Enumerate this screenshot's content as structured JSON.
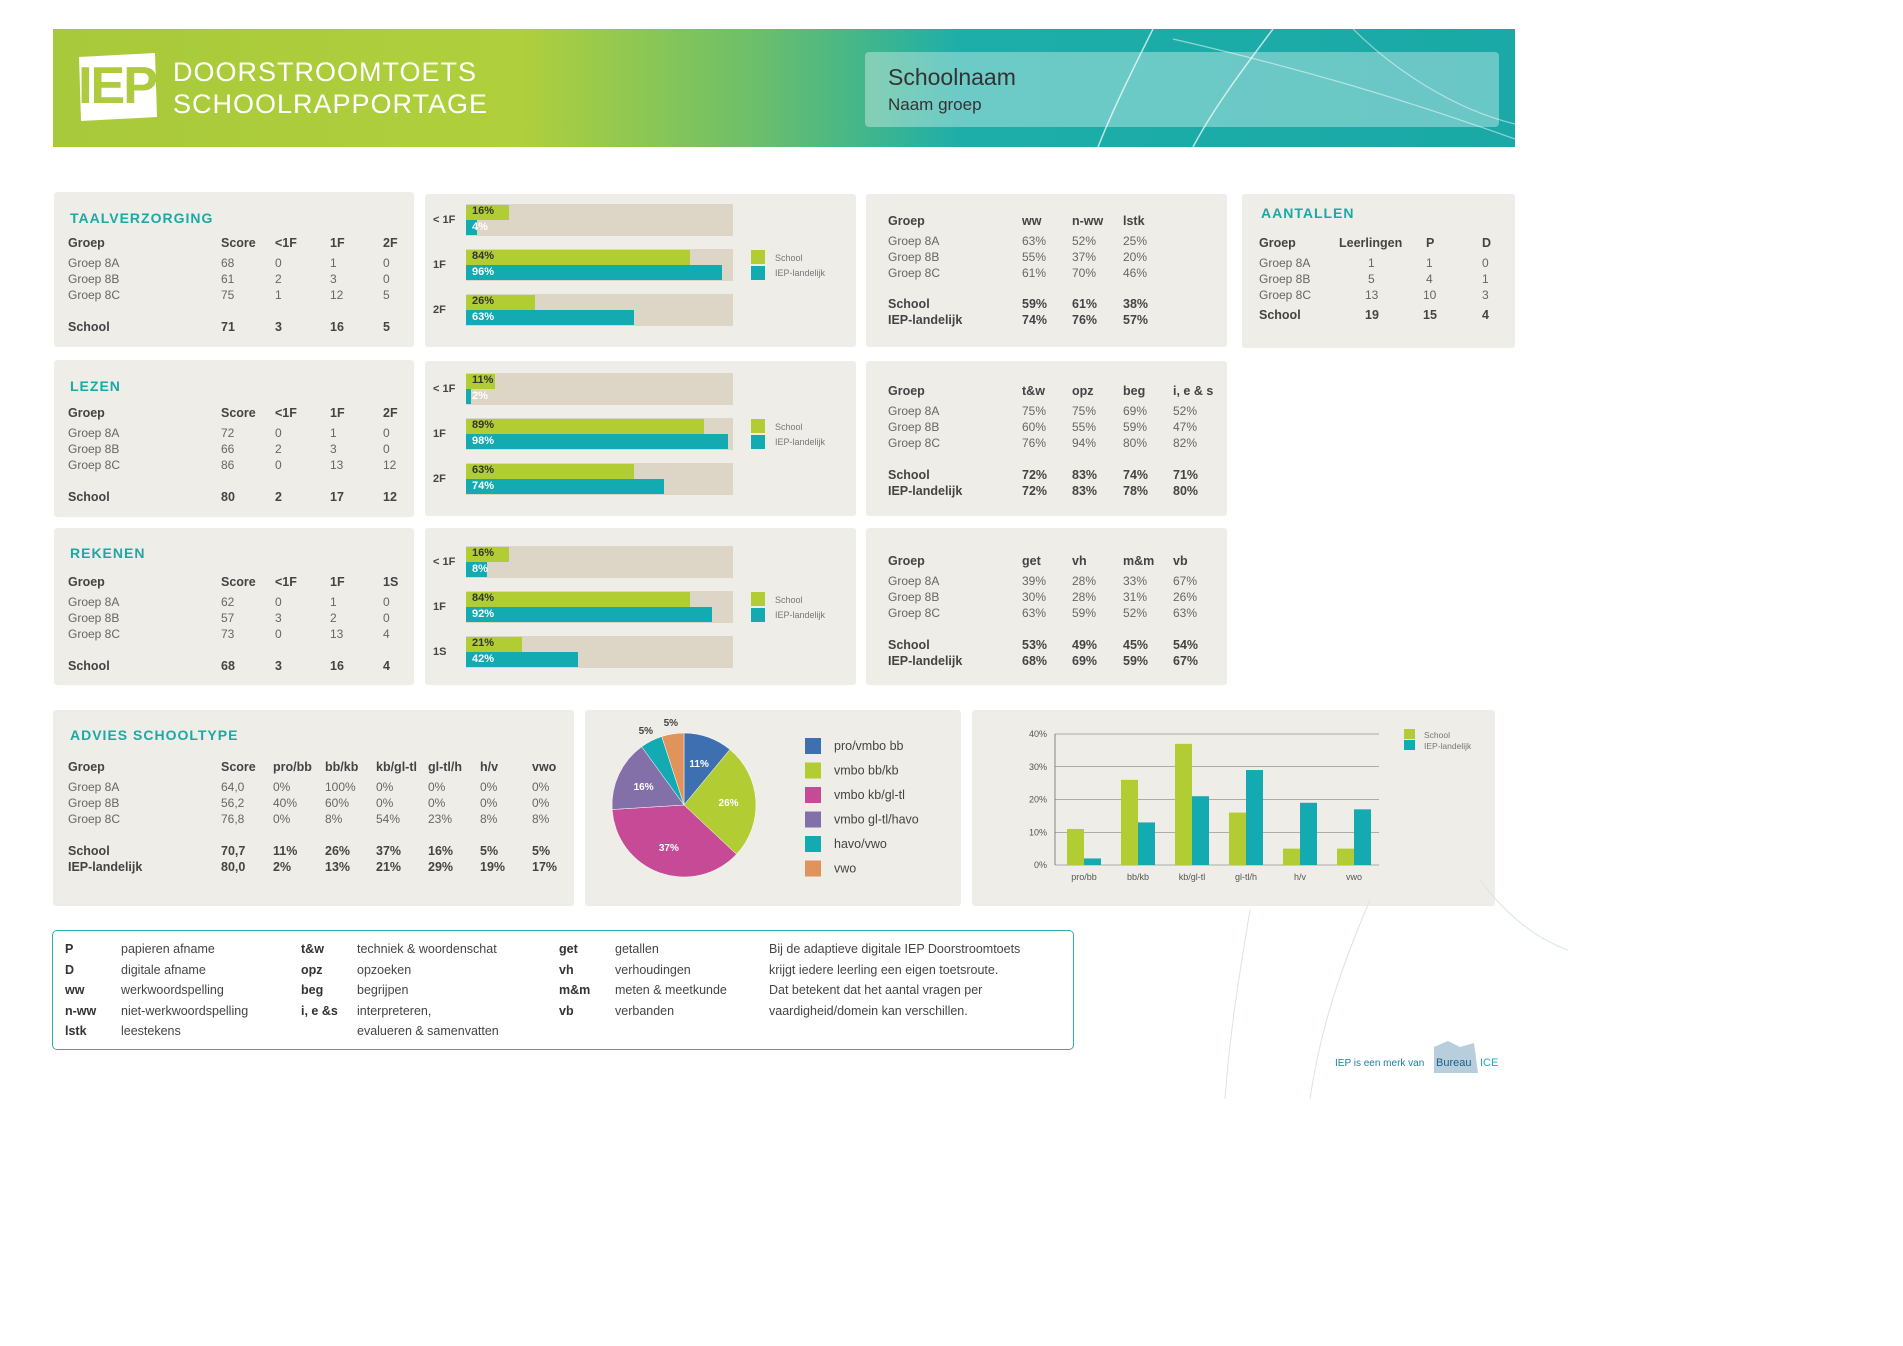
{
  "header": {
    "logo": "IEP",
    "title_line1": "DOORSTROOMTOETS",
    "title_line2": "SCHOOLRAPPORTAGE",
    "school_name": "Schoolnaam",
    "group_name": "Naam groep"
  },
  "taalverzorging": {
    "title": "TAALVERZORGING",
    "headers": [
      "Groep",
      "Score",
      "<1F",
      "1F",
      "2F"
    ],
    "rows": [
      [
        "Groep 8A",
        "68",
        "0",
        "1",
        "0"
      ],
      [
        "Groep 8B",
        "61",
        "2",
        "3",
        "0"
      ],
      [
        "Groep 8C",
        "75",
        "1",
        "12",
        "5"
      ]
    ],
    "school": [
      "School",
      "71",
      "3",
      "16",
      "5"
    ],
    "bars": {
      "levels": [
        "< 1F",
        "1F",
        "2F"
      ],
      "school": [
        16,
        84,
        26
      ],
      "national": [
        4,
        96,
        63
      ],
      "school_labels": [
        "16%",
        "84%",
        "26%"
      ],
      "national_labels": [
        "4%",
        "96%",
        "63%"
      ]
    },
    "domain_headers": [
      "Groep",
      "ww",
      "n-ww",
      "lstk"
    ],
    "domain_rows": [
      [
        "Groep 8A",
        "63%",
        "52%",
        "25%"
      ],
      [
        "Groep 8B",
        "55%",
        "37%",
        "20%"
      ],
      [
        "Groep 8C",
        "61%",
        "70%",
        "46%"
      ]
    ],
    "domain_school": [
      "School",
      "59%",
      "61%",
      "38%"
    ],
    "domain_national": [
      "IEP-landelijk",
      "74%",
      "76%",
      "57%"
    ]
  },
  "lezen": {
    "title": "LEZEN",
    "headers": [
      "Groep",
      "Score",
      "<1F",
      "1F",
      "2F"
    ],
    "rows": [
      [
        "Groep 8A",
        "72",
        "0",
        "1",
        "0"
      ],
      [
        "Groep 8B",
        "66",
        "2",
        "3",
        "0"
      ],
      [
        "Groep 8C",
        "86",
        "0",
        "13",
        "12"
      ]
    ],
    "school": [
      "School",
      "80",
      "2",
      "17",
      "12"
    ],
    "bars": {
      "levels": [
        "< 1F",
        "1F",
        "2F"
      ],
      "school": [
        11,
        89,
        63
      ],
      "national": [
        2,
        98,
        74
      ],
      "school_labels": [
        "11%",
        "89%",
        "63%"
      ],
      "national_labels": [
        "2%",
        "98%",
        "74%"
      ]
    },
    "domain_headers": [
      "Groep",
      "t&w",
      "opz",
      "beg",
      "i, e & s"
    ],
    "domain_rows": [
      [
        "Groep 8A",
        "75%",
        "75%",
        "69%",
        "52%"
      ],
      [
        "Groep 8B",
        "60%",
        "55%",
        "59%",
        "47%"
      ],
      [
        "Groep 8C",
        "76%",
        "94%",
        "80%",
        "82%"
      ]
    ],
    "domain_school": [
      "School",
      "72%",
      "83%",
      "74%",
      "71%"
    ],
    "domain_national": [
      "IEP-landelijk",
      "72%",
      "83%",
      "78%",
      "80%"
    ]
  },
  "rekenen": {
    "title": "REKENEN",
    "headers": [
      "Groep",
      "Score",
      "<1F",
      "1F",
      "1S"
    ],
    "rows": [
      [
        "Groep 8A",
        "62",
        "0",
        "1",
        "0"
      ],
      [
        "Groep 8B",
        "57",
        "3",
        "2",
        "0"
      ],
      [
        "Groep 8C",
        "73",
        "0",
        "13",
        "4"
      ]
    ],
    "school": [
      "School",
      "68",
      "3",
      "16",
      "4"
    ],
    "bars": {
      "levels": [
        "< 1F",
        "1F",
        "1S"
      ],
      "school": [
        16,
        84,
        21
      ],
      "national": [
        8,
        92,
        42
      ],
      "school_labels": [
        "16%",
        "84%",
        "21%"
      ],
      "national_labels": [
        "8%",
        "92%",
        "42%"
      ]
    },
    "domain_headers": [
      "Groep",
      "get",
      "vh",
      "m&m",
      "vb"
    ],
    "domain_rows": [
      [
        "Groep 8A",
        "39%",
        "28%",
        "33%",
        "67%"
      ],
      [
        "Groep 8B",
        "30%",
        "28%",
        "31%",
        "26%"
      ],
      [
        "Groep 8C",
        "63%",
        "59%",
        "52%",
        "63%"
      ]
    ],
    "domain_school": [
      "School",
      "53%",
      "49%",
      "45%",
      "54%"
    ],
    "domain_national": [
      "IEP-landelijk",
      "68%",
      "69%",
      "59%",
      "67%"
    ]
  },
  "bar_legend": {
    "school": "School",
    "national": "IEP-landelijk"
  },
  "aantallen": {
    "title": "AANTALLEN",
    "headers": [
      "Groep",
      "Leerlingen",
      "P",
      "D"
    ],
    "rows": [
      [
        "Groep 8A",
        "1",
        "1",
        "0"
      ],
      [
        "Groep 8B",
        "5",
        "4",
        "1"
      ],
      [
        "Groep 8C",
        "13",
        "10",
        "3"
      ]
    ],
    "school": [
      "School",
      "19",
      "15",
      "4"
    ]
  },
  "advies": {
    "title": "ADVIES SCHOOLTYPE",
    "headers": [
      "Groep",
      "Score",
      "pro/bb",
      "bb/kb",
      "kb/gl-tl",
      "gl-tl/h",
      "h/v",
      "vwo"
    ],
    "rows": [
      [
        "Groep 8A",
        "64,0",
        "0%",
        "100%",
        "0%",
        "0%",
        "0%",
        "0%"
      ],
      [
        "Groep 8B",
        "56,2",
        "40%",
        "60%",
        "0%",
        "0%",
        "0%",
        "0%"
      ],
      [
        "Groep 8C",
        "76,8",
        "0%",
        "8%",
        "54%",
        "23%",
        "8%",
        "8%"
      ]
    ],
    "school": [
      "School",
      "70,7",
      "11%",
      "26%",
      "37%",
      "16%",
      "5%",
      "5%"
    ],
    "national": [
      "IEP-landelijk",
      "80,0",
      "2%",
      "13%",
      "21%",
      "29%",
      "19%",
      "17%"
    ]
  },
  "colors": {
    "school": "#b2cd33",
    "national": "#13aab2",
    "accent": "#1aa9a6",
    "panel": "#efede8",
    "bar_bg": "#ddd6c6"
  },
  "chart_data": [
    {
      "type": "pie",
      "labels": [
        "pro/vmbo bb",
        "vmbo bb/kb",
        "vmbo kb/gl-tl",
        "vmbo gl-tl/havo",
        "havo/vwo",
        "vwo"
      ],
      "values": [
        11,
        26,
        37,
        16,
        5,
        5
      ],
      "value_labels": [
        "11%",
        "26%",
        "37%",
        "16%",
        "5%",
        "5%"
      ],
      "colors": [
        "#3e6fb0",
        "#b2cd33",
        "#c64a96",
        "#8470a8",
        "#13aab2",
        "#e0935a"
      ]
    },
    {
      "type": "bar",
      "categories": [
        "pro/bb",
        "bb/kb",
        "kb/gl-tl",
        "gl-tl/h",
        "h/v",
        "vwo"
      ],
      "series": [
        {
          "name": "School",
          "values": [
            11,
            26,
            37,
            16,
            5,
            5
          ]
        },
        {
          "name": "IEP-landelijk",
          "values": [
            2,
            13,
            21,
            29,
            19,
            17
          ]
        }
      ],
      "ylim": [
        0,
        40
      ],
      "yticks": [
        "0%",
        "10%",
        "20%",
        "30%",
        "40%"
      ],
      "legend": "top-right"
    }
  ],
  "glossary": {
    "col1": [
      [
        "P",
        "papieren afname"
      ],
      [
        "D",
        "digitale afname"
      ],
      [
        "ww",
        "werkwoordspelling"
      ],
      [
        "n-ww",
        "niet-werkwoordspelling"
      ],
      [
        "lstk",
        "leestekens"
      ]
    ],
    "col2": [
      [
        "t&w",
        "techniek & woordenschat"
      ],
      [
        "opz",
        "opzoeken"
      ],
      [
        "beg",
        "begrijpen"
      ],
      [
        "i, e &s",
        "interpreteren,"
      ],
      [
        "",
        "evalueren & samenvatten"
      ]
    ],
    "col3": [
      [
        "get",
        "getallen"
      ],
      [
        "vh",
        "verhoudingen"
      ],
      [
        "m&m",
        "meten & meetkunde"
      ],
      [
        "vb",
        "verbanden"
      ]
    ],
    "note": [
      "Bij de adaptieve digitale IEP Doorstroomtoets",
      "krijgt iedere leerling een eigen toetsroute.",
      "Dat betekent dat het aantal vragen per",
      "vaardigheid/domein kan verschillen."
    ]
  },
  "footer": {
    "text": "IEP is een merk van",
    "brand1": "Bureau",
    "brand2": "ICE"
  }
}
